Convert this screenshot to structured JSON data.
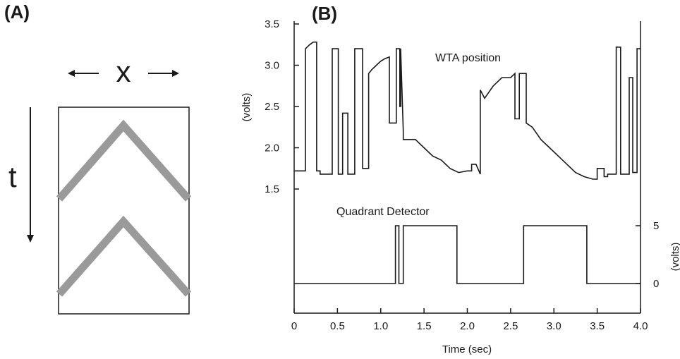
{
  "panel_a": {
    "label": "(A)",
    "x_symbol": "x",
    "t_symbol": "t",
    "stripe_color": "#9a9a9a"
  },
  "panel_b": {
    "label": "(B)"
  },
  "chart_data": {
    "type": "line",
    "title": "",
    "xlabel": "Time (sec)",
    "ylabel_left": "(volts)",
    "ylabel_right": "(volts)",
    "xlim": [
      0,
      4.0
    ],
    "x_ticks": [
      "0",
      "0.5",
      "1.0",
      "1.5",
      "2.0",
      "2.5",
      "3.0",
      "3.5",
      "4.0"
    ],
    "ylim_left": [
      1.5,
      3.5
    ],
    "y_ticks_left": [
      "1.5",
      "2.0",
      "2.5",
      "3.0",
      "3.5"
    ],
    "y_ticks_right": [
      "0",
      "5"
    ],
    "grid": false,
    "series": [
      {
        "name": "WTA position",
        "axis": "left",
        "color": "#1a1a1a",
        "x": [
          0,
          0.13,
          0.13,
          0.18,
          0.22,
          0.26,
          0.26,
          0.3,
          0.3,
          0.44,
          0.44,
          0.51,
          0.51,
          0.56,
          0.56,
          0.62,
          0.62,
          0.7,
          0.7,
          0.79,
          0.79,
          0.86,
          0.86,
          0.9,
          0.95,
          1.0,
          1.05,
          1.1,
          1.1,
          1.18,
          1.18,
          1.22,
          1.22,
          1.23,
          1.23,
          1.26,
          1.26,
          1.4,
          1.5,
          1.6,
          1.7,
          1.8,
          1.9,
          2.0,
          2.05,
          2.05,
          2.1,
          2.15,
          2.15,
          2.2,
          2.3,
          2.4,
          2.5,
          2.55,
          2.55,
          2.6,
          2.6,
          2.68,
          2.68,
          2.75,
          2.85,
          2.95,
          3.05,
          3.15,
          3.25,
          3.35,
          3.45,
          3.5,
          3.5,
          3.58,
          3.58,
          3.62,
          3.62,
          3.72,
          3.72,
          3.77,
          3.77,
          3.87,
          3.87,
          3.91,
          3.91,
          3.96,
          3.96,
          4.0
        ],
        "y": [
          1.72,
          1.72,
          3.2,
          3.25,
          3.28,
          3.28,
          1.72,
          1.72,
          1.68,
          1.68,
          3.2,
          3.2,
          1.68,
          1.68,
          2.42,
          2.42,
          1.68,
          1.68,
          3.2,
          3.2,
          1.75,
          1.75,
          2.9,
          2.95,
          3.0,
          3.05,
          3.08,
          3.1,
          2.3,
          2.3,
          3.2,
          3.2,
          2.5,
          2.5,
          3.2,
          2.2,
          2.1,
          2.1,
          2.0,
          1.9,
          1.85,
          1.75,
          1.7,
          1.72,
          1.72,
          1.8,
          1.8,
          1.68,
          2.7,
          2.6,
          2.75,
          2.85,
          2.85,
          2.9,
          2.35,
          2.35,
          2.9,
          2.9,
          2.3,
          2.25,
          2.1,
          2.0,
          1.9,
          1.8,
          1.7,
          1.65,
          1.62,
          1.62,
          1.75,
          1.75,
          1.65,
          1.65,
          1.68,
          1.68,
          3.22,
          3.22,
          1.68,
          1.68,
          2.85,
          2.85,
          1.7,
          1.7,
          3.2,
          3.2
        ]
      },
      {
        "name": "Quadrant Detector",
        "axis": "right",
        "color": "#1a1a1a",
        "x": [
          0,
          1.17,
          1.17,
          1.21,
          1.21,
          1.26,
          1.26,
          1.88,
          1.88,
          2.65,
          2.65,
          3.38,
          3.38,
          4.0
        ],
        "y": [
          0,
          0,
          5,
          5,
          0,
          0,
          5,
          5,
          0,
          0,
          5,
          5,
          0,
          0
        ]
      }
    ]
  }
}
